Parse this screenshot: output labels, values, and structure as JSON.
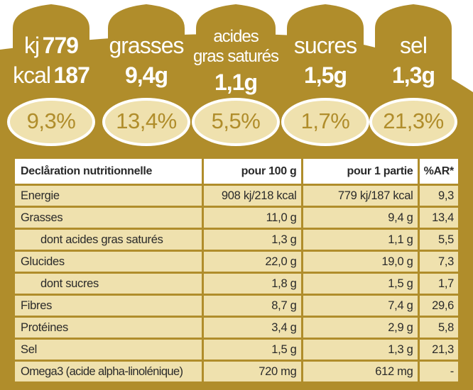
{
  "colors": {
    "gold": "#b08d2b",
    "cream": "#efe1ae",
    "white": "#ffffff"
  },
  "badges": [
    {
      "line1_label": "kj",
      "line1_value": "779",
      "line2_label": "kcal",
      "line2_value": "187",
      "percent": "9,3%"
    },
    {
      "label": "grasses",
      "value": "9,4g",
      "percent": "13,4%"
    },
    {
      "label1": "acides",
      "label2": "gras saturés",
      "value": "1,1g",
      "percent": "5,5%"
    },
    {
      "label": "sucres",
      "value": "1,5g",
      "percent": "1,7%"
    },
    {
      "label": "sel",
      "value": "1,3g",
      "percent": "21,3%"
    }
  ],
  "table": {
    "headers": [
      "Declåration nutritionnelle",
      "pour 100 g",
      "pour 1 partie",
      "%AR*"
    ],
    "rows": [
      [
        "Energie",
        "908 kj/218 kcal",
        "779 kj/187 kcal",
        "9,3"
      ],
      [
        "Grasses",
        "11,0 g",
        "9,4 g",
        "13,4"
      ],
      [
        "dont acides gras saturés",
        "1,3 g",
        "1,1 g",
        "5,5"
      ],
      [
        "Glucides",
        "22,0 g",
        "19,0 g",
        "7,3"
      ],
      [
        "dont sucres",
        "1,8 g",
        "1,5 g",
        "1,7"
      ],
      [
        "Fibres",
        "8,7 g",
        "7,4 g",
        "29,6"
      ],
      [
        "Protéines",
        "3,4 g",
        "2,9 g",
        "5,8"
      ],
      [
        "Sel",
        "1,5 g",
        "1,3 g",
        "21,3"
      ],
      [
        "Omega3 (acide alpha-linolénique)",
        "720 mg",
        "612 mg",
        "-"
      ]
    ]
  }
}
